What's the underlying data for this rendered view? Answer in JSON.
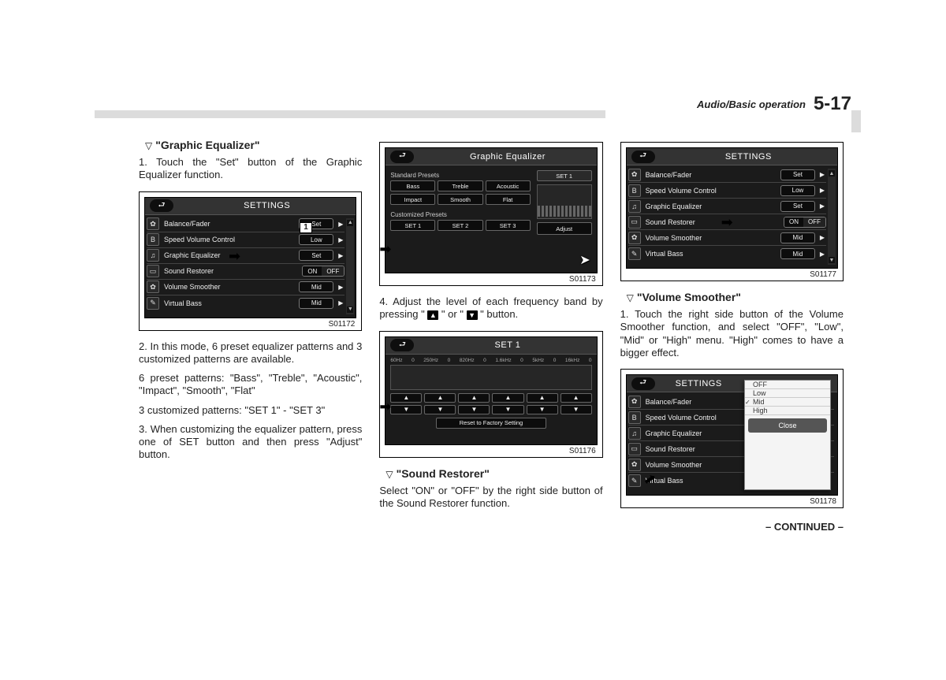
{
  "header": {
    "section": "Audio/Basic operation",
    "page": "5-17"
  },
  "col1": {
    "h1": "\"Graphic Equalizer\"",
    "p1": "1. Touch the \"Set\" button of the Graphic Equalizer function.",
    "p2": "2. In this mode, 6 preset equalizer patterns and 3 customized patterns are available.",
    "p3": "6 preset patterns: \"Bass\", \"Treble\", \"Acoustic\", \"Impact\", \"Smooth\", \"Flat\"",
    "p4": "3 customized patterns: \"SET 1\" - \"SET 3\"",
    "p5": "3. When customizing the equalizer pattern, press one of SET button and then press \"Adjust\" button.",
    "fig": {
      "title": "SETTINGS",
      "id": "S01172",
      "callout": "1",
      "rows": [
        {
          "icon": "✿",
          "label": "Balance/Fader",
          "btn": "Set",
          "arrow": true
        },
        {
          "icon": "B",
          "label": "Speed Volume Control",
          "btn": "Low",
          "arrow": true
        },
        {
          "icon": "♫",
          "label": "Graphic Equalizer",
          "btn": "Set",
          "arrow": true
        },
        {
          "icon": "▭",
          "label": "Sound Restorer",
          "split": [
            "ON",
            "OFF"
          ]
        },
        {
          "icon": "✿",
          "label": "Volume Smoother",
          "btn": "Mid",
          "arrow": true
        },
        {
          "icon": "✎",
          "label": "Virtual Bass",
          "btn": "Mid",
          "arrow": true
        }
      ]
    }
  },
  "col2": {
    "figA": {
      "title": "Graphic Equalizer",
      "id": "S01173",
      "std_label": "Standard Presets",
      "std": [
        "Bass",
        "Treble",
        "Acoustic",
        "Impact",
        "Smooth",
        "Flat"
      ],
      "cust_label": "Customized Presets",
      "cust": [
        "SET 1",
        "SET 2",
        "SET 3"
      ],
      "set_badge": "SET 1",
      "adjust": "Adjust"
    },
    "p1a": "4. Adjust the level of each frequency band by pressing \" ",
    "p1b": " \" or \" ",
    "p1c": " \" button.",
    "figB": {
      "title": "SET 1",
      "id": "S01176",
      "freqs": [
        "60Hz",
        "0",
        "250Hz",
        "0",
        "820Hz",
        "0",
        "1.6kHz",
        "0",
        "5kHz",
        "0",
        "16kHz",
        "0"
      ],
      "reset": "Reset to Factory Setting"
    },
    "h2": "\"Sound Restorer\"",
    "p2": "Select \"ON\" or \"OFF\" by the right side button of the Sound Restorer function."
  },
  "col3": {
    "figA": {
      "title": "SETTINGS",
      "id": "S01177",
      "rows": [
        {
          "icon": "✿",
          "label": "Balance/Fader",
          "btn": "Set",
          "arrow": true
        },
        {
          "icon": "B",
          "label": "Speed Volume Control",
          "btn": "Low",
          "arrow": true
        },
        {
          "icon": "♫",
          "label": "Graphic Equalizer",
          "btn": "Set",
          "arrow": true
        },
        {
          "icon": "▭",
          "label": "Sound Restorer",
          "split": [
            "ON",
            "OFF"
          ]
        },
        {
          "icon": "✿",
          "label": "Volume Smoother",
          "btn": "Mid",
          "arrow": true
        },
        {
          "icon": "✎",
          "label": "Virtual Bass",
          "btn": "Mid",
          "arrow": true
        }
      ]
    },
    "h1": "\"Volume Smoother\"",
    "p1": "1. Touch the right side button of the Volume Smoother function, and select \"OFF\", \"Low\", \"Mid\" or \"High\" menu. \"High\" comes to have a bigger effect.",
    "figB": {
      "title": "SETTINGS",
      "id": "S01178",
      "rows": [
        {
          "icon": "✿",
          "label": "Balance/Fader"
        },
        {
          "icon": "B",
          "label": "Speed Volume Control"
        },
        {
          "icon": "♫",
          "label": "Graphic Equalizer"
        },
        {
          "icon": "▭",
          "label": "Sound Restorer"
        },
        {
          "icon": "✿",
          "label": "Volume Smoother"
        },
        {
          "icon": "✎",
          "label": "Virtual Bass"
        }
      ],
      "popup": {
        "items": [
          "OFF",
          "Low",
          "Mid",
          "High"
        ],
        "selected": 2,
        "close": "Close"
      }
    },
    "continued": "– CONTINUED –"
  }
}
